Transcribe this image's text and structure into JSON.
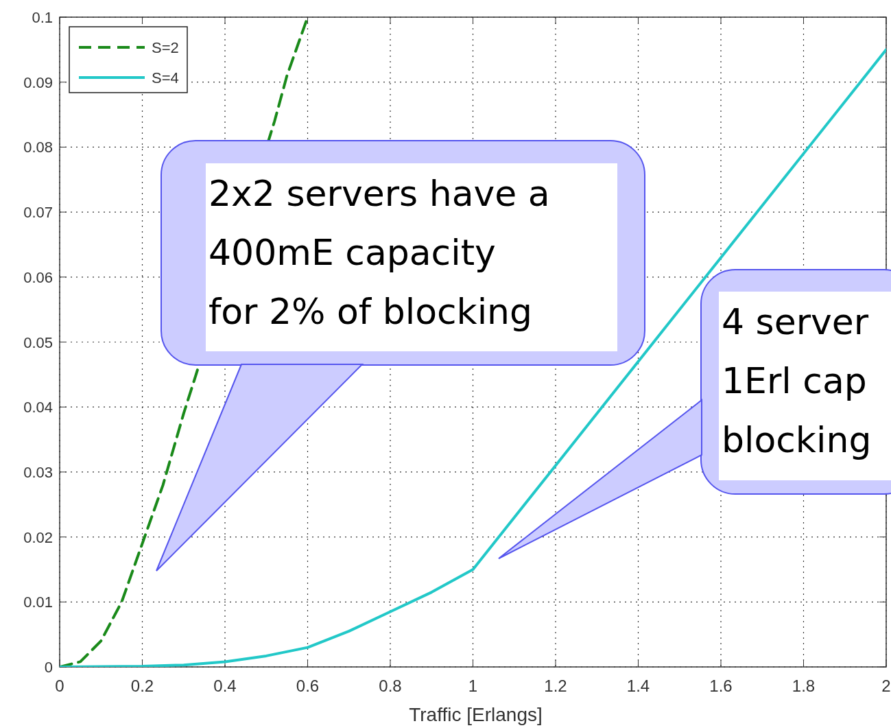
{
  "chart_data": {
    "type": "line",
    "xlabel": "Traffic [Erlangs]",
    "xlim": [
      0,
      2
    ],
    "ylim": [
      0,
      0.1
    ],
    "xticks": [
      0,
      0.2,
      0.4,
      0.6,
      0.8,
      1,
      1.2,
      1.4,
      1.6,
      1.8,
      2
    ],
    "yticks": [
      0,
      0.01,
      0.02,
      0.03,
      0.04,
      0.05,
      0.06,
      0.07,
      0.08,
      0.09,
      0.1
    ],
    "grid": true,
    "legend": "top left",
    "series": [
      {
        "name": "S=2",
        "color": "#1a8a1a",
        "line_style": "dashed",
        "x": [
          0,
          0.05,
          0.1,
          0.15,
          0.2,
          0.25,
          0.3,
          0.33,
          0.52,
          0.55,
          0.6
        ],
        "values": [
          0,
          0.0008,
          0.004,
          0.01,
          0.019,
          0.028,
          0.039,
          0.045,
          0.084,
          0.091,
          0.1
        ]
      },
      {
        "name": "S=4",
        "color": "#22c8c8",
        "line_style": "solid",
        "x": [
          0,
          0.2,
          0.3,
          0.4,
          0.5,
          0.6,
          0.7,
          0.8,
          0.9,
          1,
          1.2,
          1.35,
          1.45,
          1.6,
          1.8,
          2
        ],
        "values": [
          0,
          0.0001,
          0.0003,
          0.0008,
          0.0017,
          0.003,
          0.0055,
          0.0085,
          0.0115,
          0.015,
          0.031,
          0.043,
          0.051,
          0.063,
          0.079,
          0.095
        ]
      }
    ],
    "annotations": [
      "2x2 servers have a\n400mE capacity\nfor 2% of blocking",
      "4 server\n1Erl cap\nblocking"
    ]
  }
}
